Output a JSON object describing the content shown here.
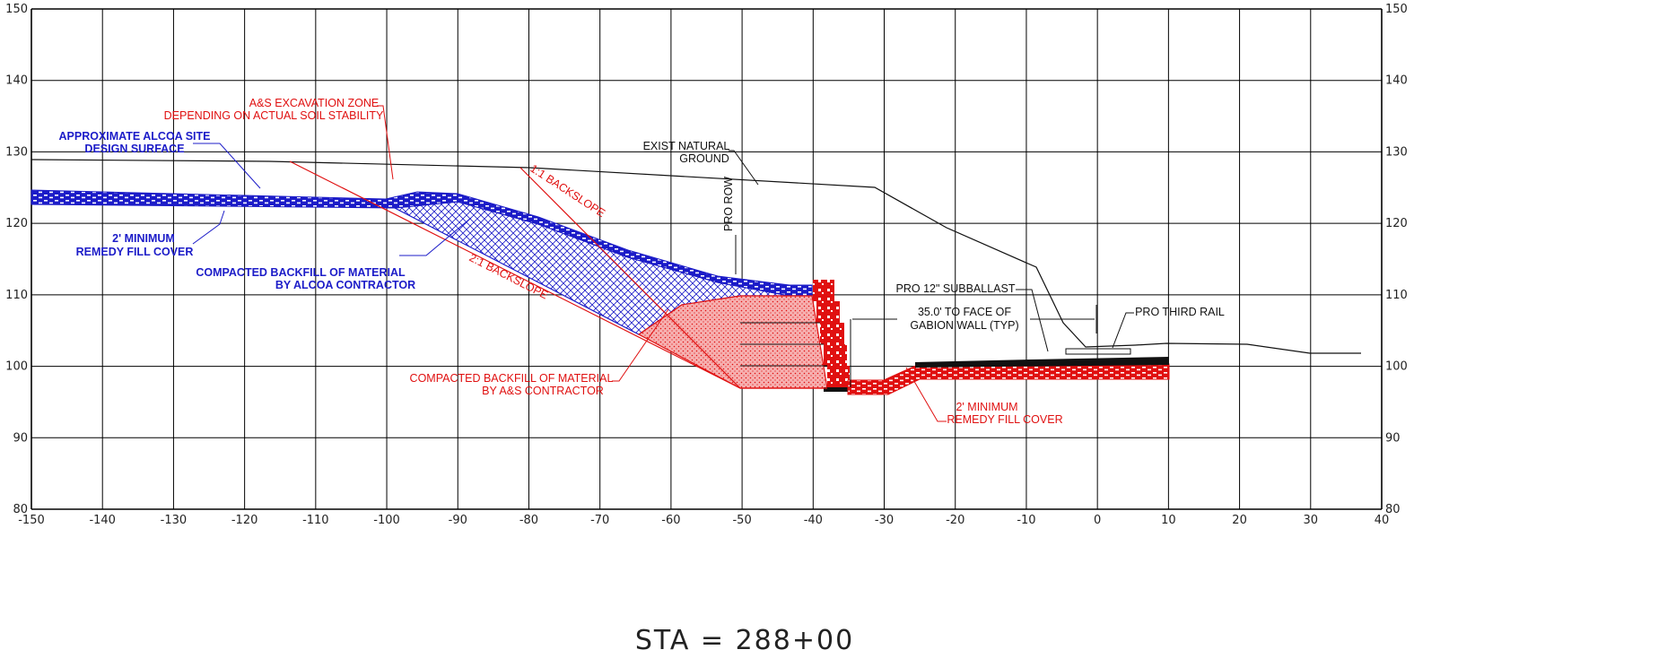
{
  "drawing": {
    "station_label": "STA  =  288+00",
    "x_ticks": [
      "-150",
      "-140",
      "-130",
      "-120",
      "-110",
      "-100",
      "-90",
      "-80",
      "-70",
      "-60",
      "-50",
      "-40",
      "-30",
      "-20",
      "-10",
      "0",
      "10",
      "20",
      "30",
      "40"
    ],
    "y_ticks": [
      "80",
      "90",
      "100",
      "110",
      "120",
      "130",
      "140",
      "150"
    ],
    "colors": {
      "blue": "#1c1cc8",
      "red": "#e01010",
      "grid": "#000000",
      "line": "#111111"
    },
    "annotations": {
      "alcoa_site_1": "APPROXIMATE ALCOA SITE",
      "alcoa_site_2": "DESIGN SURFACE",
      "excavation_1": "A&S EXCAVATION ZONE",
      "excavation_2": "DEPENDING ON ACTUAL SOIL STABILITY",
      "natural_ground_1": "EXIST NATURAL",
      "natural_ground_2": "GROUND",
      "backslope_11": "1:1 BACKSLOPE",
      "backslope_21": "2:1 BACKSLOPE",
      "pro_row": "PRO ROW",
      "min_cover_left_1": "2' MINIMUM",
      "min_cover_left_2": "REMEDY FILL COVER",
      "backfill_alcoa_1": "COMPACTED BACKFILL OF MATERIAL",
      "backfill_alcoa_2": "BY ALCOA CONTRACTOR",
      "subballast": "PRO 12\" SUBBALLAST",
      "third_rail": "PRO THIRD RAIL",
      "gabion_1": "35.0' TO FACE OF",
      "gabion_2": "GABION WALL (TYP)",
      "backfill_as_1": "COMPACTED BACKFILL OF MATERIAL",
      "backfill_as_2": "BY A&S CONTRACTOR",
      "min_cover_right_1": "2' MINIMUM",
      "min_cover_right_2": "REMEDY FILL COVER"
    }
  }
}
